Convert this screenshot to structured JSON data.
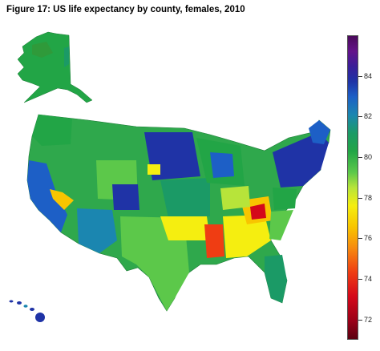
{
  "title": "Figure 17: US life expectancy by county, females, 2010",
  "legend": {
    "min": 71,
    "max": 86,
    "ticks": [
      "84",
      "82",
      "80",
      "78",
      "76",
      "74",
      "72"
    ]
  },
  "colors": {
    "very_high": "#3a1e98",
    "high": "#1f33a6",
    "above_avg": "#1b86b0",
    "avg": "#22a546",
    "below_avg": "#5cc84a",
    "low": "#f5ee10",
    "very_low": "#f78a10",
    "lowest": "#d4081a"
  }
}
